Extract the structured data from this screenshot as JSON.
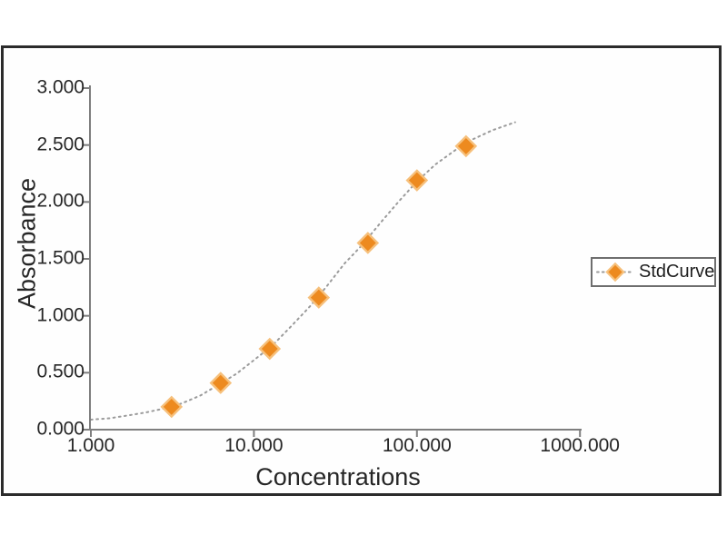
{
  "chart_data": {
    "type": "scatter",
    "title": "",
    "xlabel": "Concentrations",
    "ylabel": "Absorbance",
    "x_scale": "log",
    "xlim": [
      1,
      1000
    ],
    "ylim": [
      0,
      3
    ],
    "grid": false,
    "x_tick_values": [
      1,
      10,
      100,
      1000
    ],
    "x_tick_labels": [
      "1.000",
      "10.000",
      "100.000",
      "1000.000"
    ],
    "y_tick_values": [
      0,
      0.5,
      1,
      1.5,
      2,
      2.5,
      3
    ],
    "y_tick_labels": [
      "0.000",
      "0.500",
      "1.000",
      "1.500",
      "2.000",
      "2.500",
      "3.000"
    ],
    "series": [
      {
        "name": "StdCurve",
        "marker": "diamond",
        "color": "#ED8A1F",
        "marker_halo_color": "#F6C07C",
        "x": [
          3.125,
          6.25,
          12.5,
          25,
          50,
          100,
          200
        ],
        "y": [
          0.2,
          0.41,
          0.71,
          1.16,
          1.64,
          2.19,
          2.49
        ]
      }
    ],
    "fit_curve": {
      "style": "dotted",
      "color": "#9b9b9b",
      "points": [
        [
          1,
          0.088
        ],
        [
          1.3,
          0.1
        ],
        [
          1.7,
          0.125
        ],
        [
          2.2,
          0.152
        ],
        [
          2.8,
          0.185
        ],
        [
          3.6,
          0.23
        ],
        [
          4.7,
          0.3
        ],
        [
          6,
          0.39
        ],
        [
          7.8,
          0.49
        ],
        [
          10,
          0.61
        ],
        [
          13,
          0.74
        ],
        [
          17,
          0.91
        ],
        [
          22,
          1.08
        ],
        [
          28,
          1.26
        ],
        [
          36,
          1.46
        ],
        [
          46,
          1.62
        ],
        [
          60,
          1.82
        ],
        [
          78,
          2.01
        ],
        [
          100,
          2.18
        ],
        [
          130,
          2.33
        ],
        [
          170,
          2.45
        ],
        [
          220,
          2.55
        ],
        [
          290,
          2.63
        ],
        [
          400,
          2.7
        ]
      ]
    },
    "legend": {
      "position": "right",
      "entries": [
        "StdCurve"
      ]
    }
  },
  "colors": {
    "frame_border": "#2b2b2b",
    "axis": "#7e7e7e",
    "text": "#262626",
    "marker_fill": "#ED8A1F",
    "marker_halo": "#F6C07C",
    "curve": "#9b9b9b",
    "legend_border": "#6e6e6e",
    "background": "#ffffff"
  }
}
